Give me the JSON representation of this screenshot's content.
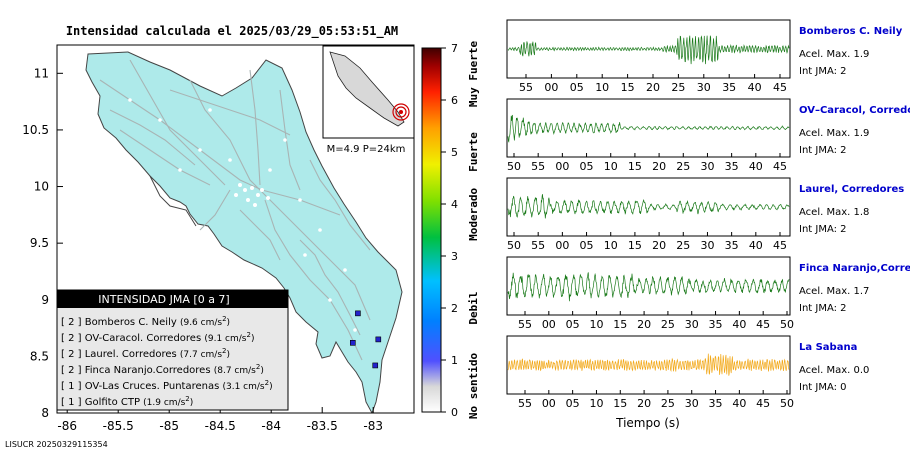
{
  "title": "Intensidad calculada el 2025/03/29_05:53:51_AM",
  "footer_id": "LISUCR 20250329115354",
  "colors": {
    "land": "#aeeaea",
    "road": "#a8b4b4",
    "trace_green": "#1a7a1a",
    "trace_orange": "#f2a818",
    "station_name": "#0000cc",
    "legend_header_bg": "#000000",
    "legend_bg": "#e8e8e8"
  },
  "map": {
    "x_ticks": [
      "-86",
      "-85.5",
      "-85",
      "-84.5",
      "-84",
      "-83.5",
      "-83"
    ],
    "x_values": [
      -86,
      -85.5,
      -85,
      -84.5,
      -84,
      -83.5,
      -83
    ],
    "y_ticks": [
      "11",
      "10.5",
      "10",
      "9.5",
      "9",
      "8.5",
      "8"
    ],
    "y_values": [
      11,
      10.5,
      10,
      9.5,
      9,
      8.5,
      8
    ],
    "xlim": [
      -86.1,
      -82.6
    ],
    "ylim": [
      8,
      11.25
    ],
    "inset_label": "M=4.9 P=24km",
    "station_markers": [
      {
        "lon": -83.15,
        "lat": 8.88
      },
      {
        "lon": -82.95,
        "lat": 8.65
      },
      {
        "lon": -82.98,
        "lat": 8.42
      },
      {
        "lon": -83.2,
        "lat": 8.62
      }
    ]
  },
  "legend": {
    "header": "INTENSIDAD JMA [0 a 7]",
    "items": [
      {
        "level": "[ 2 ]",
        "name": "Bomberos C. Neily",
        "value": "(9.6 cm/s",
        "exp": "2",
        "close": ")"
      },
      {
        "level": "[ 2 ]",
        "name": "OV-Caracol. Corredores",
        "value": "(9.1 cm/s",
        "exp": "2",
        "close": ")"
      },
      {
        "level": "[ 2 ]",
        "name": "Laurel. Corredores",
        "value": "(7.7 cm/s",
        "exp": "2",
        "close": ")"
      },
      {
        "level": "[ 2 ]",
        "name": "Finca Naranjo.Corredores",
        "value": "(8.7 cm/s",
        "exp": "2",
        "close": ")"
      },
      {
        "level": "[ 1 ]",
        "name": "OV-Las Cruces. Puntarenas",
        "value": "(3.1 cm/s",
        "exp": "2",
        "close": ")"
      },
      {
        "level": "[ 1 ]",
        "name": "Golfito CTP",
        "value": "(1.9 cm/s",
        "exp": "2",
        "close": ")"
      }
    ]
  },
  "colorbar": {
    "ticks": [
      "0",
      "1",
      "2",
      "3",
      "4",
      "5",
      "6",
      "7"
    ],
    "values": [
      0,
      1,
      2,
      3,
      4,
      5,
      6,
      7
    ],
    "categories": [
      "No sentido",
      "Debil",
      "Moderado",
      "Fuerte",
      "Muy Fuerte"
    ],
    "category_centers": [
      0.5,
      2,
      3.8,
      5,
      6.5
    ]
  },
  "chart_data": {
    "type": "line",
    "xlabel": "Tiempo (s)",
    "panels": [
      {
        "station": "Bomberos C. Neily",
        "acel": "Acel. Max. 1.9",
        "jma": "Int JMA: 2",
        "ticks": [
          "55",
          "00",
          "05",
          "10",
          "15",
          "20",
          "25",
          "30",
          "35",
          "40",
          "45"
        ],
        "first_tick": 55,
        "x_span": [
          50,
          47.5
        ]
      },
      {
        "station": "OV–Caracol, Corredore",
        "acel": "Acel. Max. 1.9",
        "jma": "Int JMA: 2",
        "ticks": [
          "50",
          "55",
          "00",
          "05",
          "10",
          "15",
          "20",
          "25",
          "30",
          "35",
          "40",
          "45"
        ],
        "first_tick": 50,
        "x_span": [
          48.5,
          47.5
        ]
      },
      {
        "station": "Laurel, Corredores",
        "acel": "Acel. Max. 1.8",
        "jma": "Int JMA: 2",
        "ticks": [
          "50",
          "55",
          "00",
          "05",
          "10",
          "15",
          "20",
          "25",
          "30",
          "35",
          "40",
          "45"
        ],
        "first_tick": 50,
        "x_span": [
          48.5,
          47.5
        ]
      },
      {
        "station": "Finca Naranjo,Corredor",
        "acel": "Acel. Max. 1.7",
        "jma": "Int JMA: 2",
        "ticks": [
          "55",
          "00",
          "05",
          "10",
          "15",
          "20",
          "25",
          "30",
          "35",
          "40",
          "45",
          "50"
        ],
        "first_tick": 55,
        "x_span": [
          51,
          51
        ]
      },
      {
        "station": "La Sabana",
        "acel": "Acel. Max. 0.0",
        "jma": "Int JMA: 0",
        "ticks": [
          "55",
          "00",
          "05",
          "10",
          "15",
          "20",
          "25",
          "30",
          "35",
          "40",
          "45",
          "50"
        ],
        "first_tick": 55,
        "x_span": [
          51,
          51
        ]
      }
    ]
  }
}
